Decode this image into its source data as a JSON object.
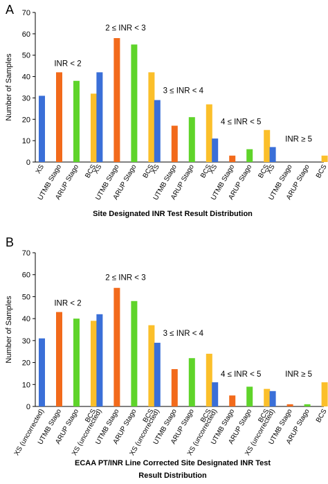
{
  "colors": {
    "XS": "#3a6fd8",
    "UTMB Stago": "#f26a1b",
    "ARUP Stago": "#5fd42a",
    "BCS": "#fbbf2a"
  },
  "chart_data": [
    {
      "panel": "A",
      "type": "bar",
      "ylabel": "Number of Samples",
      "xlabel_lines": [
        "Site Designated INR Test Result Distribution"
      ],
      "ylim": [
        0,
        70
      ],
      "yticks": [
        0,
        10,
        20,
        30,
        40,
        50,
        60,
        70
      ],
      "groups": [
        {
          "label": "INR < 2",
          "categories": [
            "XS",
            "UTMB Stago",
            "ARUP Stago",
            "BCS"
          ],
          "values": [
            31,
            42,
            38,
            32
          ]
        },
        {
          "label": "2 ≤ INR < 3",
          "categories": [
            "XS",
            "UTMB Stago",
            "ARUP Stago",
            "BCS"
          ],
          "values": [
            42,
            58,
            55,
            42
          ]
        },
        {
          "label": "3 ≤ INR < 4",
          "categories": [
            "XS",
            "UTMB Stago",
            "ARUP Stago",
            "BCS"
          ],
          "values": [
            29,
            17,
            21,
            27
          ]
        },
        {
          "label": "4 ≤ INR < 5",
          "categories": [
            "XS",
            "UTMB Stago",
            "ARUP Stago",
            "BCS"
          ],
          "values": [
            11,
            3,
            6,
            15
          ]
        },
        {
          "label": "INR ≥ 5",
          "categories": [
            "XS",
            "UTMB Stago",
            "ARUP Stago",
            "BCS"
          ],
          "values": [
            7,
            0,
            0,
            3
          ]
        }
      ]
    },
    {
      "panel": "B",
      "type": "bar",
      "ylabel": "Number of Samples",
      "xlabel_lines": [
        "ECAA PT/INR Line Corrected Site Designated INR Test",
        "Result Distribution"
      ],
      "ylim": [
        0,
        70
      ],
      "yticks": [
        0,
        10,
        20,
        30,
        40,
        50,
        60,
        70
      ],
      "groups": [
        {
          "label": "INR < 2",
          "categories": [
            "XS (uncorrected)",
            "UTMB Stago",
            "ARUP Stago",
            "BCS"
          ],
          "values": [
            31,
            43,
            40,
            39
          ]
        },
        {
          "label": "2 ≤ INR < 3",
          "categories": [
            "XS (uncorrected)",
            "UTMB Stago",
            "ARUP Stago",
            "BCS"
          ],
          "values": [
            42,
            54,
            48,
            37
          ]
        },
        {
          "label": "3 ≤ INR < 4",
          "categories": [
            "XS (uncorrected)",
            "UTMB Stago",
            "ARUP Stago",
            "BCS"
          ],
          "values": [
            29,
            17,
            22,
            24
          ]
        },
        {
          "label": "4 ≤ INR < 5",
          "categories": [
            "XS (uncorrected)",
            "UTMB Stago",
            "ARUP Stago",
            "BCS"
          ],
          "values": [
            11,
            5,
            9,
            8
          ]
        },
        {
          "label": "INR ≥ 5",
          "categories": [
            "XS (uncorrected)",
            "UTMB Stago",
            "ARUP Stago",
            "BCS"
          ],
          "values": [
            7,
            1,
            1,
            11
          ]
        }
      ]
    }
  ]
}
